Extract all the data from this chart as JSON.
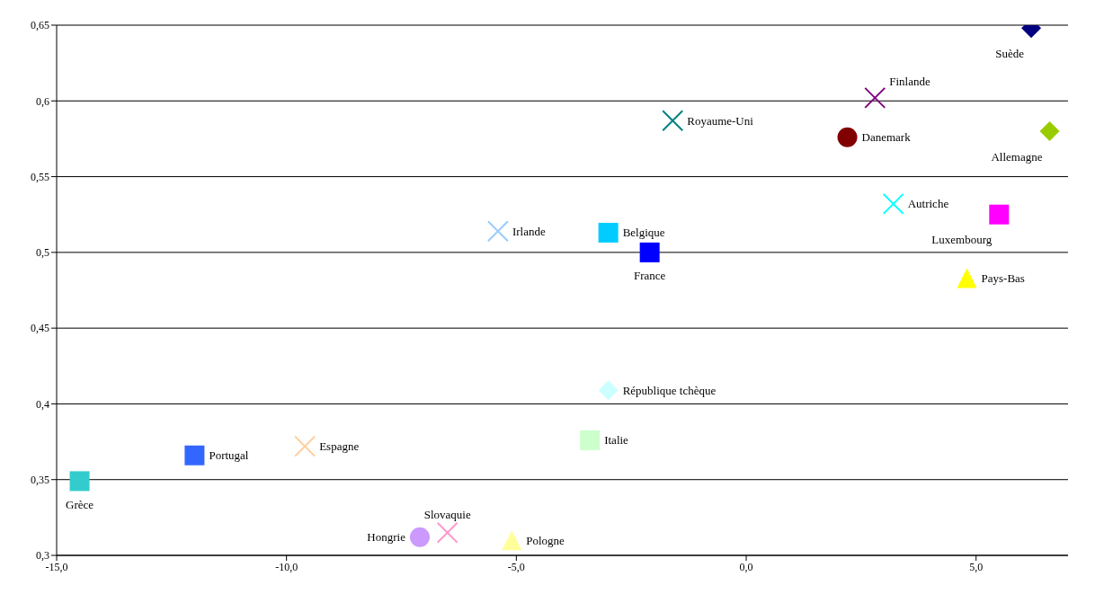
{
  "chart_data": {
    "type": "scatter",
    "xlim": [
      -15,
      7
    ],
    "ylim": [
      0.3,
      0.65
    ],
    "xticks": [
      {
        "value": -15,
        "label": "-15,0"
      },
      {
        "value": -10,
        "label": "-10,0"
      },
      {
        "value": -5,
        "label": "-5,0"
      },
      {
        "value": 0,
        "label": "0,0"
      },
      {
        "value": 5,
        "label": "5,0"
      }
    ],
    "yticks": [
      {
        "value": 0.3,
        "label": "0,3"
      },
      {
        "value": 0.35,
        "label": "0,35"
      },
      {
        "value": 0.4,
        "label": "0,4"
      },
      {
        "value": 0.45,
        "label": "0,45"
      },
      {
        "value": 0.5,
        "label": "0,5"
      },
      {
        "value": 0.55,
        "label": "0,55"
      },
      {
        "value": 0.6,
        "label": "0,6"
      },
      {
        "value": 0.65,
        "label": "0,65"
      }
    ],
    "grid": "y",
    "legend": false,
    "series": [
      {
        "name": "Suède",
        "color": "#000080",
        "marker": "diamond",
        "x": [
          6.2
        ],
        "values": [
          0.648
        ]
      },
      {
        "name": "Finlande",
        "color": "#800080",
        "marker": "cross",
        "x": [
          2.8
        ],
        "values": [
          0.602
        ]
      },
      {
        "name": "Royaume-Uni",
        "color": "#008080",
        "marker": "cross",
        "x": [
          -1.6
        ],
        "values": [
          0.587
        ]
      },
      {
        "name": "Danemark",
        "color": "#800000",
        "marker": "circle",
        "x": [
          2.2
        ],
        "values": [
          0.576
        ]
      },
      {
        "name": "Allemagne",
        "color": "#99cc00",
        "marker": "diamond",
        "x": [
          6.6
        ],
        "values": [
          0.58
        ]
      },
      {
        "name": "Autriche",
        "color": "#00ffff",
        "marker": "cross",
        "x": [
          3.2
        ],
        "values": [
          0.532
        ]
      },
      {
        "name": "Luxembourg",
        "color": "#ff00ff",
        "marker": "square",
        "x": [
          5.5
        ],
        "values": [
          0.525
        ]
      },
      {
        "name": "Irlande",
        "color": "#99ccff",
        "marker": "cross",
        "x": [
          -5.4
        ],
        "values": [
          0.514
        ]
      },
      {
        "name": "Belgique",
        "color": "#00ccff",
        "marker": "square",
        "x": [
          -3.0
        ],
        "values": [
          0.513
        ]
      },
      {
        "name": "France",
        "color": "#0000ff",
        "marker": "square",
        "x": [
          -2.1
        ],
        "values": [
          0.5
        ]
      },
      {
        "name": "Pays-Bas",
        "color": "#ffff00",
        "marker": "triangle",
        "x": [
          4.8
        ],
        "values": [
          0.483
        ]
      },
      {
        "name": "République tchèque",
        "color": "#ccffff",
        "marker": "diamond",
        "x": [
          -3.0
        ],
        "values": [
          0.409
        ]
      },
      {
        "name": "Italie",
        "color": "#ccffcc",
        "marker": "square",
        "x": [
          -3.4
        ],
        "values": [
          0.376
        ]
      },
      {
        "name": "Espagne",
        "color": "#ffcc99",
        "marker": "cross",
        "x": [
          -9.6
        ],
        "values": [
          0.372
        ]
      },
      {
        "name": "Portugal",
        "color": "#3366ff",
        "marker": "square",
        "x": [
          -12.0
        ],
        "values": [
          0.366
        ]
      },
      {
        "name": "Grèce",
        "color": "#33cccc",
        "marker": "square",
        "x": [
          -14.5
        ],
        "values": [
          0.349
        ]
      },
      {
        "name": "Hongrie",
        "color": "#cc99ff",
        "marker": "circle",
        "x": [
          -7.1
        ],
        "values": [
          0.312
        ]
      },
      {
        "name": "Slovaquie",
        "color": "#ff99cc",
        "marker": "cross",
        "x": [
          -6.5
        ],
        "values": [
          0.315
        ]
      },
      {
        "name": "Pologne",
        "color": "#ffff99",
        "marker": "triangle",
        "x": [
          -5.1
        ],
        "values": [
          0.31
        ]
      }
    ]
  }
}
